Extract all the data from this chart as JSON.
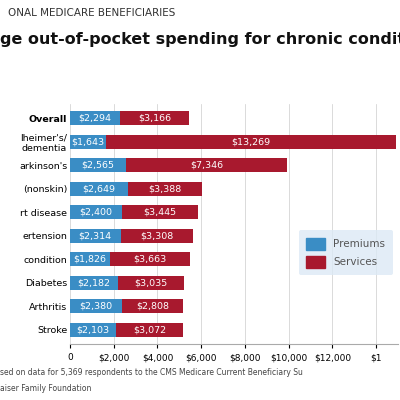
{
  "title_line1": "ONAL MEDICARE BENEFICIARIES",
  "title_line2": "ge out-of-pocket spending for chronic conditions, 201",
  "labels_short": [
    "Overall",
    "lheimer's/\ndementia",
    "arkinson's",
    "(nonskin)",
    "rt disease",
    "ertension",
    "condition",
    "Diabetes",
    "Arthritis",
    "Stroke"
  ],
  "premiums": [
    2294,
    1643,
    2565,
    2649,
    2400,
    2314,
    1826,
    2182,
    2380,
    2103
  ],
  "services": [
    3166,
    13269,
    7346,
    3388,
    3445,
    3308,
    3663,
    3035,
    2808,
    3072
  ],
  "premium_color": "#3a8dc5",
  "service_color": "#a8192e",
  "legend_bg": "#dce9f5",
  "footnote1": "sed on data for 5,369 respondents to the CMS Medicare Current Beneficiary Su",
  "footnote2": "aiser Family Foundation",
  "xlim_max": 15000,
  "xtick_values": [
    0,
    2000,
    4000,
    6000,
    8000,
    10000,
    12000,
    14000
  ],
  "xtick_labels": [
    "0",
    "$2,000",
    "$4,000",
    "$6,000",
    "$8,000",
    "$10,000",
    "$12,000",
    "$1"
  ],
  "bar_height": 0.6,
  "label_fontsize": 6.8,
  "tick_fontsize": 6.5,
  "title_fontsize1": 7.5,
  "title_fontsize2": 11.5
}
